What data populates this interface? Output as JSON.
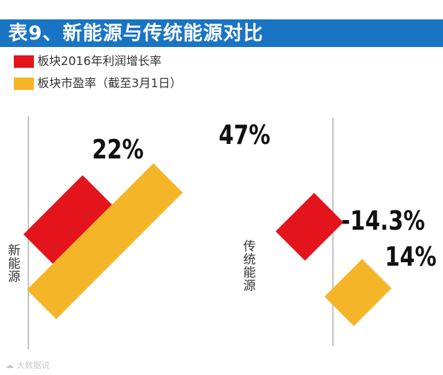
{
  "header": {
    "title": "表9、新能源与传统能源对比"
  },
  "colors": {
    "header_bg": "#1a74c4",
    "profit_growth": "#e3141c",
    "pe_ratio": "#f4b528",
    "axis": "#9a9a9a",
    "text": "#333333"
  },
  "legend": [
    {
      "label": "板块2016年利润增长率",
      "color": "#e3141c"
    },
    {
      "label": "板块市盈率（截至3月1日）",
      "color": "#f4b528"
    }
  ],
  "chart_data": {
    "type": "bar",
    "title": "表9、新能源与传统能源对比",
    "categories": [
      "新能源",
      "传统能源"
    ],
    "series": [
      {
        "name": "板块2016年利润增长率",
        "values": [
          22,
          -14.3
        ],
        "labels": [
          "22%",
          "-14.3%"
        ]
      },
      {
        "name": "板块市盈率（截至3月1日）",
        "values": [
          47,
          14
        ],
        "labels": [
          "47%",
          "14%"
        ]
      }
    ],
    "xlabel": "",
    "ylabel": ""
  },
  "watermark": {
    "text": "大数据说"
  }
}
